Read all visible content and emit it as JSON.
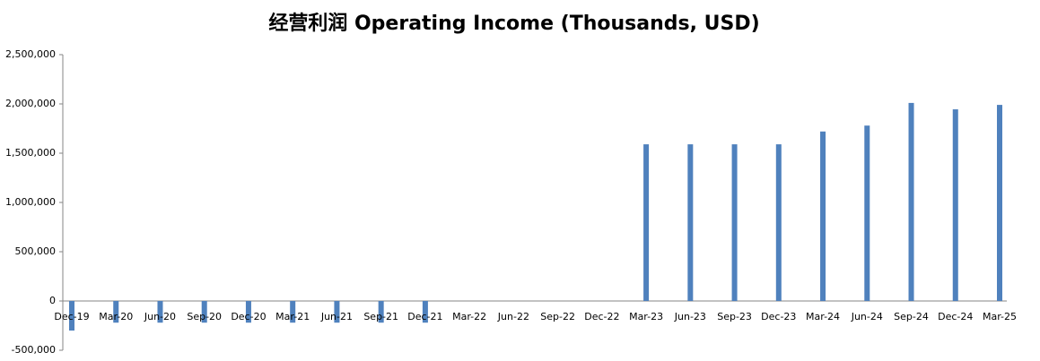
{
  "chart_data": {
    "type": "bar",
    "title": "经营利润 Operating Income (Thousands, USD)",
    "categories": [
      "Dec-19",
      "Mar-20",
      "Jun-20",
      "Sep-20",
      "Dec-20",
      "Mar-21",
      "Jun-21",
      "Sep-21",
      "Dec-21",
      "Mar-22",
      "Jun-22",
      "Sep-22",
      "Dec-22",
      "Mar-23",
      "Jun-23",
      "Sep-23",
      "Dec-23",
      "Mar-24",
      "Jun-24",
      "Sep-24",
      "Dec-24",
      "Mar-25"
    ],
    "values": [
      -300000,
      -220000,
      -220000,
      -220000,
      -220000,
      -220000,
      -220000,
      -220000,
      -220000,
      null,
      null,
      null,
      null,
      1590000,
      1590000,
      1590000,
      1590000,
      1720000,
      1780000,
      2010000,
      1945000,
      1990000
    ],
    "color": "#4f81bd",
    "ylim": [
      -500000,
      2500000
    ],
    "yticks": [
      {
        "value": -500000,
        "label": "-500,000"
      },
      0,
      {
        "value": 500000,
        "label": "500,000"
      },
      {
        "value": 1000000,
        "label": "1,000,000"
      },
      {
        "value": 1500000,
        "label": "1,500,000"
      },
      {
        "value": 2000000,
        "label": "2,000,000"
      },
      {
        "value": 2500000,
        "label": "2,500,000"
      }
    ],
    "grid": false
  }
}
